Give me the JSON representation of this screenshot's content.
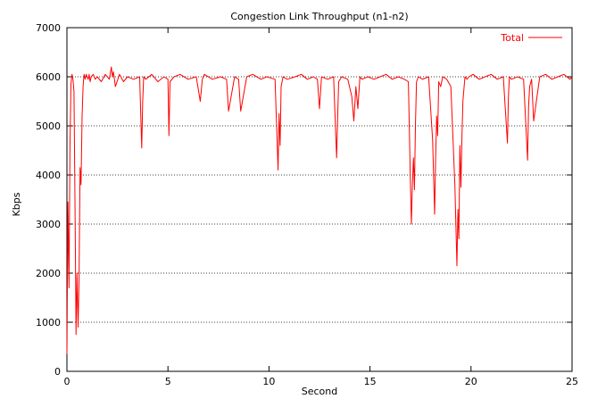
{
  "chart_data": {
    "type": "line",
    "title": "Congestion Link Throughput (n1-n2)",
    "xlabel": "Second",
    "ylabel": "Kbps",
    "xlim": [
      0,
      25
    ],
    "ylim": [
      0,
      7000
    ],
    "xticks": [
      0,
      5,
      10,
      15,
      20,
      25
    ],
    "yticks": [
      0,
      1000,
      2000,
      3000,
      4000,
      5000,
      6000,
      7000
    ],
    "grid": "horizontal dotted",
    "legend_position": "top-right",
    "series": [
      {
        "name": "Total",
        "color": "#ff0000",
        "x": [
          0,
          0.05,
          0.1,
          0.15,
          0.2,
          0.25,
          0.3,
          0.35,
          0.4,
          0.45,
          0.5,
          0.55,
          0.6,
          0.65,
          0.7,
          0.75,
          0.8,
          0.85,
          0.9,
          0.95,
          1.0,
          1.05,
          1.1,
          1.15,
          1.2,
          1.3,
          1.4,
          1.5,
          1.7,
          1.9,
          2.1,
          2.2,
          2.25,
          2.3,
          2.4,
          2.6,
          2.8,
          3.0,
          3.3,
          3.6,
          3.7,
          3.75,
          3.8,
          3.9,
          4.2,
          4.5,
          4.8,
          5.0,
          5.05,
          5.1,
          5.3,
          5.6,
          6.0,
          6.4,
          6.6,
          6.7,
          6.8,
          7.2,
          7.6,
          7.9,
          8.0,
          8.3,
          8.5,
          8.6,
          8.9,
          9.2,
          9.6,
          9.9,
          10.3,
          10.45,
          10.5,
          10.55,
          10.6,
          10.7,
          10.9,
          11.3,
          11.6,
          11.9,
          12.2,
          12.4,
          12.5,
          12.6,
          12.9,
          13.2,
          13.35,
          13.4,
          13.45,
          13.6,
          13.9,
          14.1,
          14.2,
          14.3,
          14.4,
          14.5,
          14.6,
          14.9,
          15.2,
          15.5,
          15.8,
          16.1,
          16.4,
          16.7,
          16.9,
          17.0,
          17.05,
          17.1,
          17.15,
          17.2,
          17.25,
          17.3,
          17.4,
          17.6,
          17.9,
          18.1,
          18.2,
          18.25,
          18.3,
          18.35,
          18.4,
          18.5,
          18.6,
          18.8,
          19.0,
          19.2,
          19.3,
          19.35,
          19.4,
          19.45,
          19.5,
          19.55,
          19.6,
          19.7,
          19.8,
          19.9,
          20.1,
          20.4,
          20.7,
          21.0,
          21.3,
          21.6,
          21.8,
          21.85,
          21.9,
          22.0,
          22.3,
          22.6,
          22.8,
          22.85,
          22.9,
          23.0,
          23.1,
          23.4,
          23.7,
          24.0,
          24.3,
          24.6,
          24.9,
          25.0
        ],
        "y": [
          350,
          3450,
          1700,
          4550,
          5850,
          6050,
          5950,
          5700,
          3300,
          750,
          2000,
          900,
          1900,
          4150,
          3800,
          5200,
          5800,
          6050,
          5950,
          6050,
          6000,
          5950,
          6050,
          5900,
          6000,
          6050,
          5950,
          6000,
          5900,
          6050,
          5950,
          6200,
          6000,
          6100,
          5800,
          6050,
          5900,
          6000,
          5950,
          6000,
          4550,
          5500,
          6000,
          5950,
          6050,
          5900,
          6000,
          5950,
          4800,
          5900,
          6000,
          6050,
          5950,
          6000,
          5500,
          5950,
          6050,
          5950,
          6000,
          5950,
          5300,
          6000,
          5950,
          5300,
          6000,
          6050,
          5950,
          6000,
          5950,
          4100,
          5250,
          4600,
          5800,
          6000,
          5950,
          6000,
          6050,
          5950,
          6000,
          5950,
          5350,
          6000,
          5950,
          6000,
          4350,
          5200,
          5900,
          6000,
          5950,
          5600,
          5100,
          5800,
          5350,
          6000,
          5950,
          6000,
          5950,
          6000,
          6050,
          5950,
          6000,
          5950,
          5900,
          3850,
          3000,
          3800,
          4350,
          3700,
          5000,
          5900,
          6000,
          5950,
          6000,
          4700,
          3200,
          4400,
          5200,
          4800,
          5900,
          5800,
          6000,
          5950,
          5800,
          3800,
          2150,
          3300,
          2700,
          4600,
          3750,
          4750,
          5500,
          6000,
          5950,
          6000,
          6050,
          5950,
          6000,
          6050,
          5950,
          6000,
          4650,
          5600,
          6000,
          5950,
          6000,
          5950,
          4300,
          5400,
          5800,
          5950,
          5100,
          6000,
          6050,
          5950,
          6000,
          6050,
          5950,
          6000
        ]
      }
    ]
  }
}
